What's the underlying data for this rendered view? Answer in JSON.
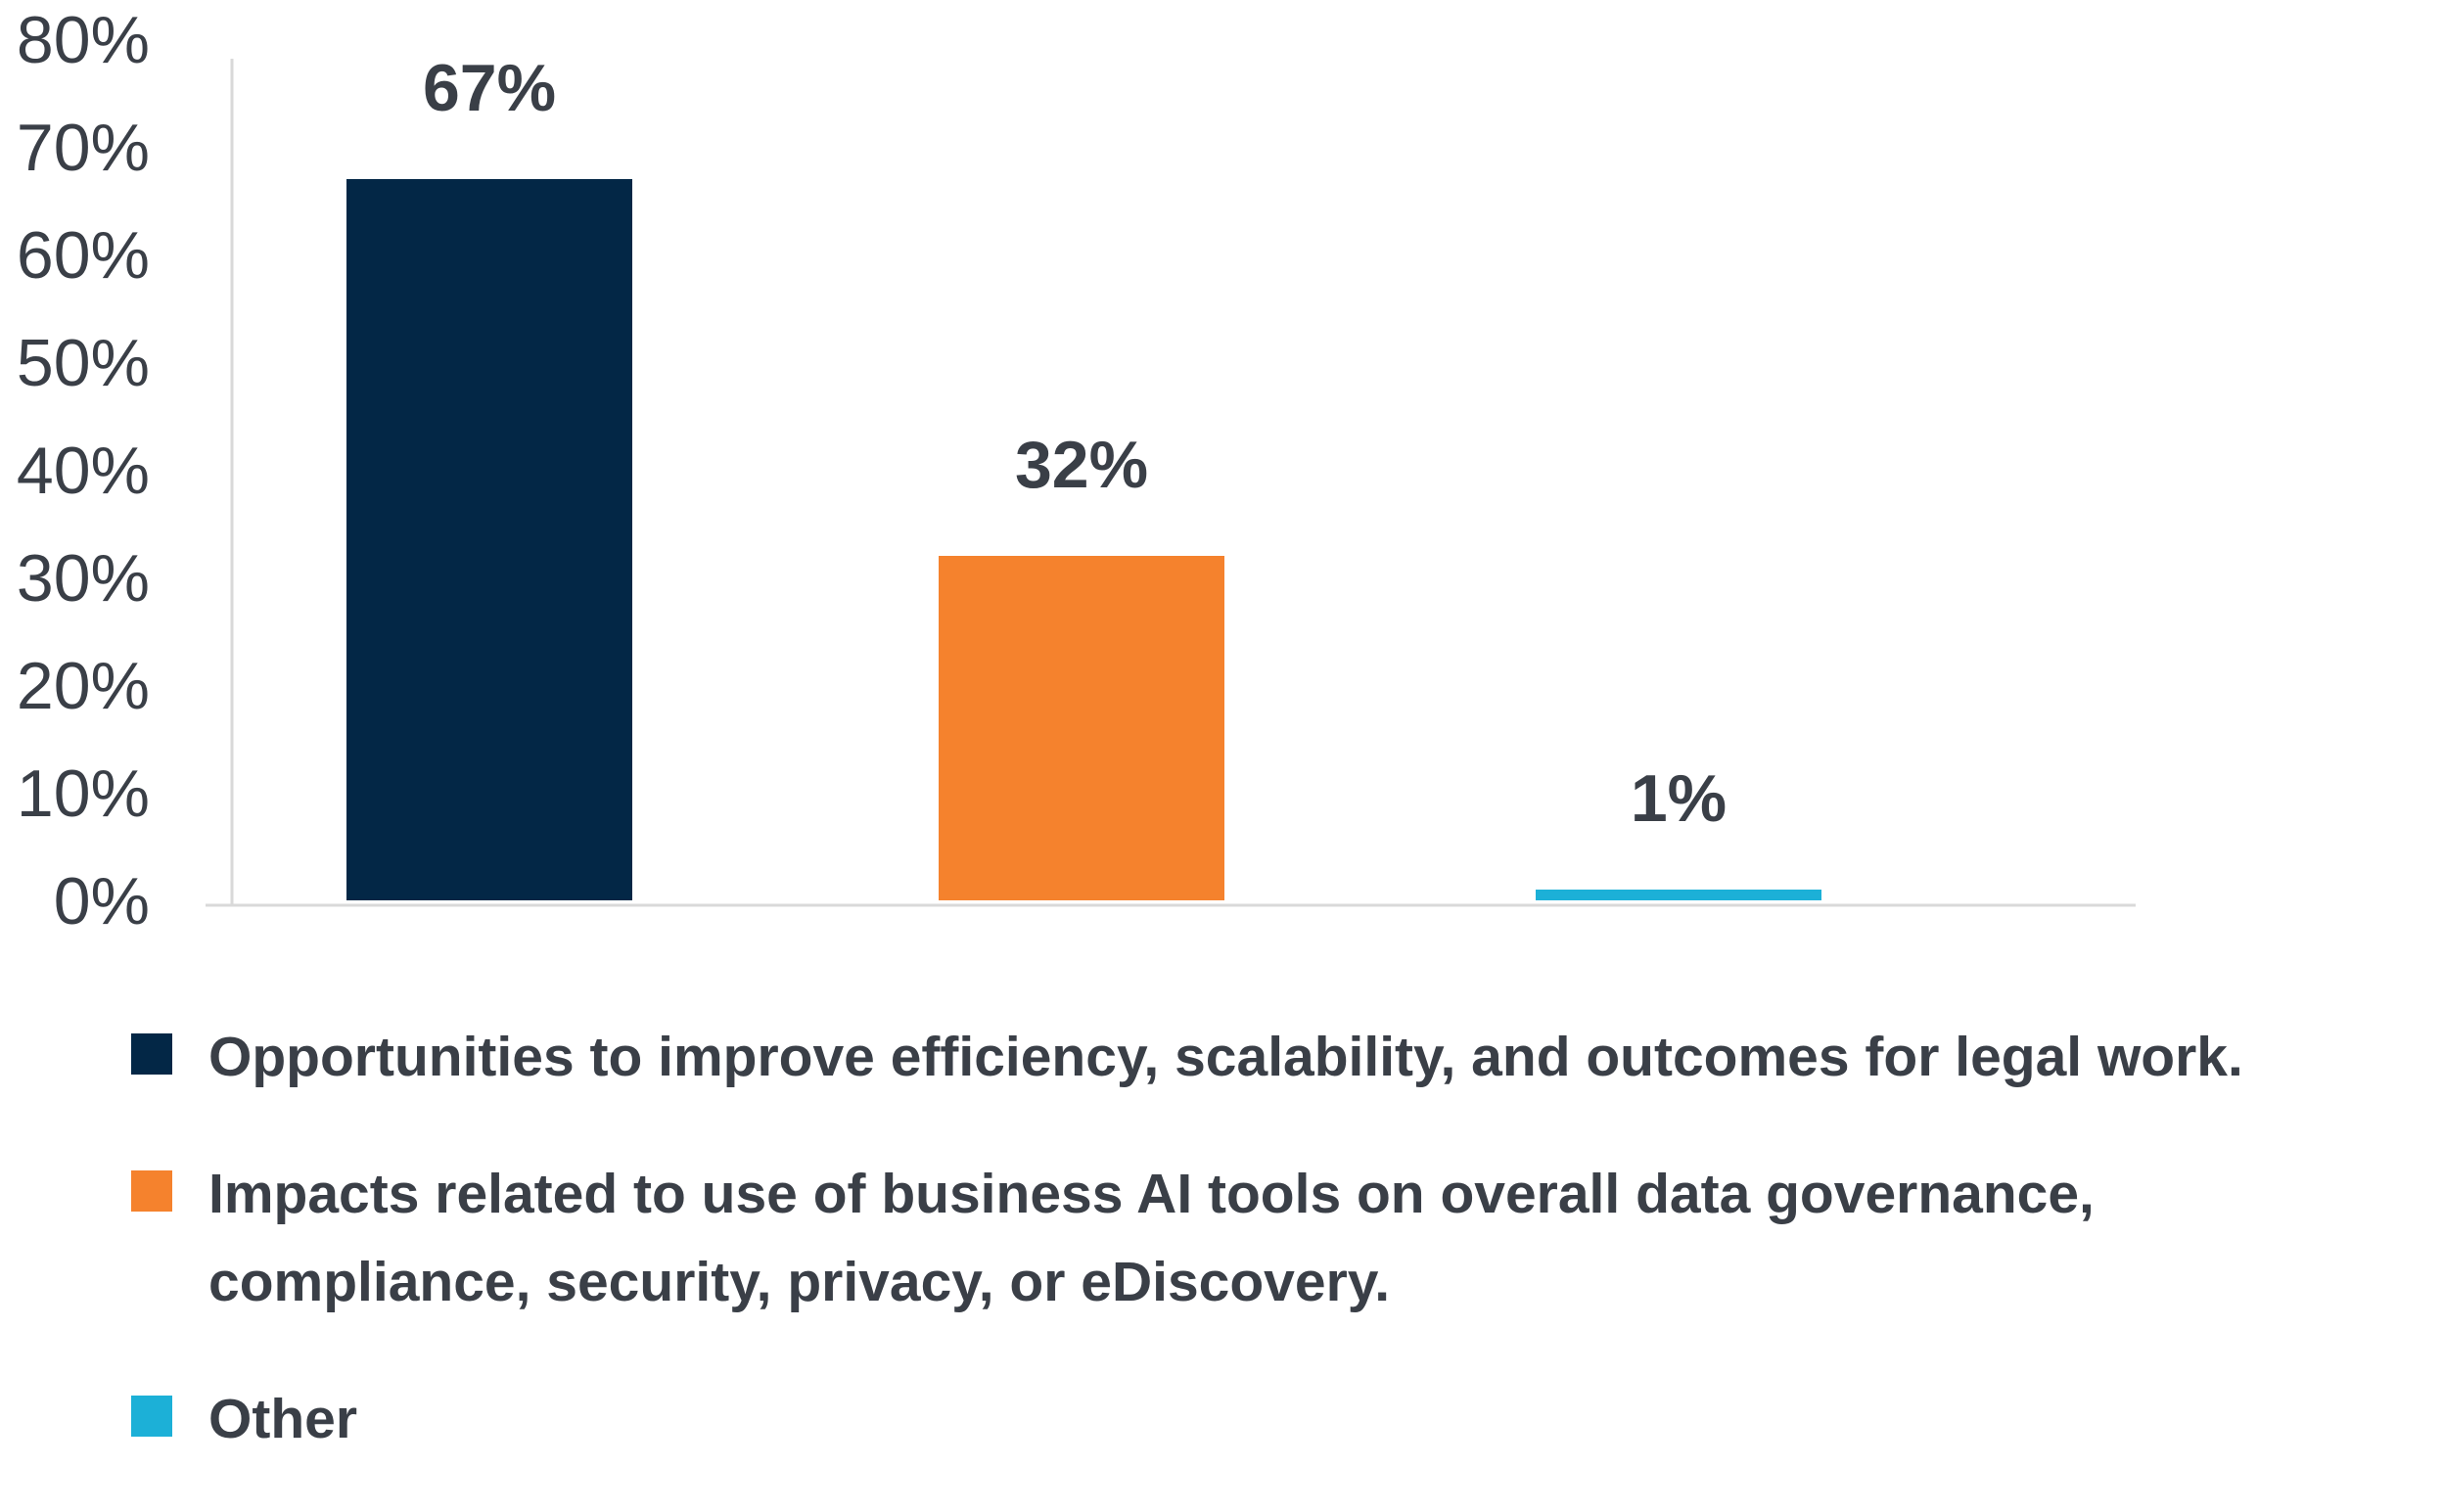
{
  "chart_data": {
    "type": "bar",
    "categories": [
      "Opportunities to improve efficiency, scalability, and outcomes for legal work.",
      "Impacts related to use of business AI tools on overall data governance,\ncompliance, security, privacy, or eDiscovery.",
      "Other"
    ],
    "values": [
      67,
      32,
      1
    ],
    "data_labels": [
      "67%",
      "32%",
      "1%"
    ],
    "colors": [
      "#032746",
      "#f5822d",
      "#1cb0d7"
    ],
    "y_ticks": [
      "0%",
      "10%",
      "20%",
      "30%",
      "40%",
      "50%",
      "60%",
      "70%",
      "80%"
    ],
    "ylim": [
      0,
      80
    ],
    "grid": false,
    "legend_position": "bottom"
  }
}
